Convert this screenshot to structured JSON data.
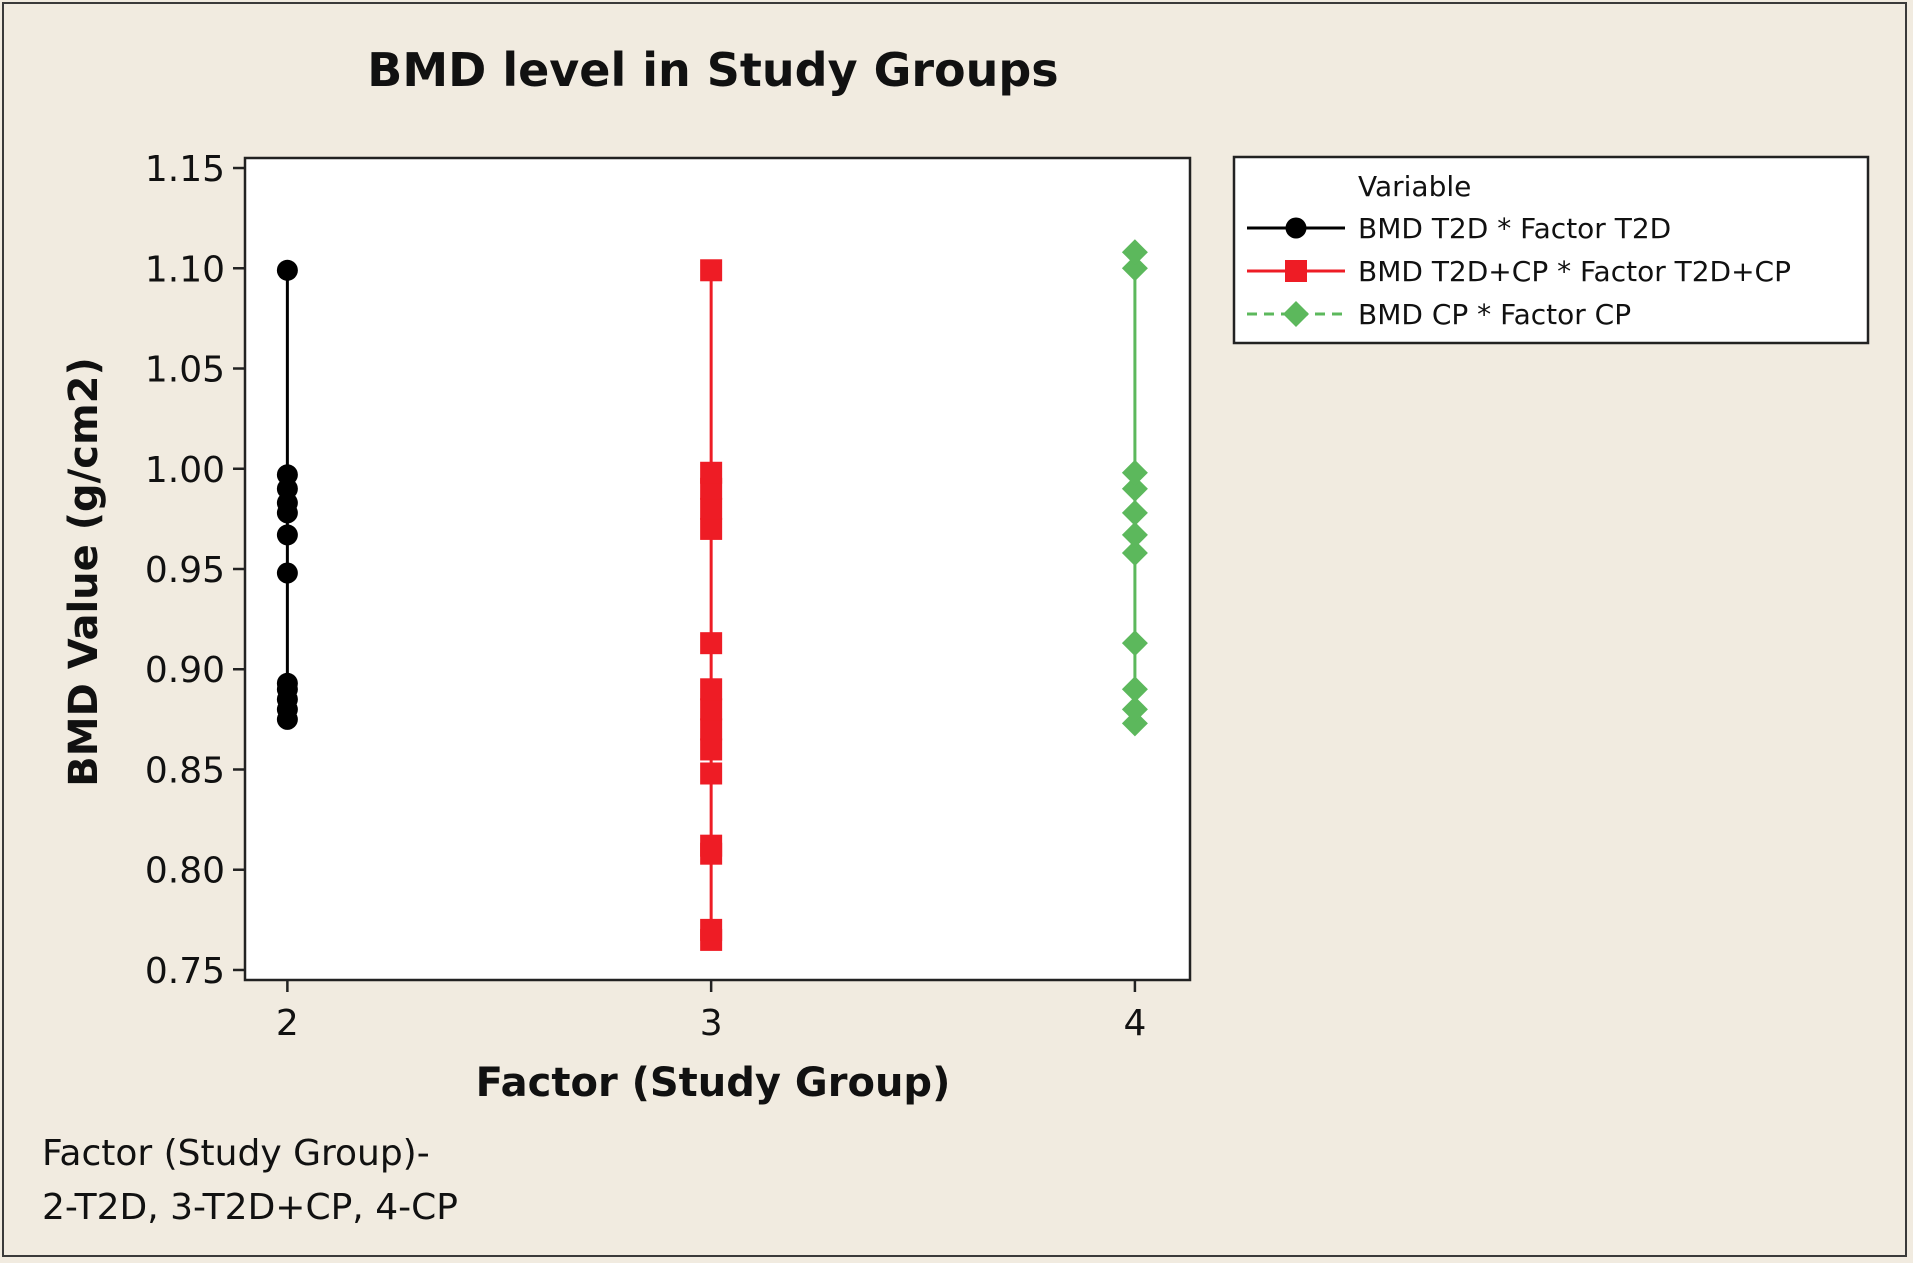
{
  "chart_data": {
    "type": "scatter",
    "title": "BMD level in Study Groups",
    "xlabel": "Factor (Study Group)",
    "ylabel": "BMD Value (g/cm2)",
    "xlim": [
      1.9,
      4.13
    ],
    "ylim": [
      0.745,
      1.155
    ],
    "x_ticks": [
      "2",
      "3",
      "4"
    ],
    "y_ticks": [
      "0.75",
      "0.80",
      "0.85",
      "0.90",
      "0.95",
      "1.00",
      "1.05",
      "1.10",
      "1.15"
    ],
    "grid": false,
    "legend_position": "right",
    "legend_title": "Variable",
    "series": [
      {
        "name": "BMD T2D * Factor T2D",
        "x": 2,
        "marker": "circle",
        "line": "solid",
        "color": "#000000",
        "values": [
          0.875,
          0.88,
          0.885,
          0.89,
          0.893,
          0.948,
          0.967,
          0.978,
          0.983,
          0.99,
          0.997,
          1.099
        ]
      },
      {
        "name": "BMD T2D+CP * Factor T2D+CP",
        "x": 3,
        "marker": "square",
        "line": "solid",
        "color": "#ee1c25",
        "values": [
          0.765,
          0.77,
          0.808,
          0.812,
          0.848,
          0.86,
          0.87,
          0.88,
          0.89,
          0.913,
          0.97,
          0.98,
          0.99,
          0.998,
          1.099
        ]
      },
      {
        "name": "BMD CP * Factor CP",
        "x": 4,
        "marker": "diamond",
        "line": "dashed",
        "color": "#5cb85c",
        "values": [
          0.873,
          0.88,
          0.89,
          0.913,
          0.958,
          0.967,
          0.978,
          0.99,
          0.998,
          1.1,
          1.108
        ]
      }
    ]
  },
  "footnote": {
    "line1": "Factor (Study Group)-",
    "line2": "2-T2D, 3-T2D+CP, 4-CP"
  }
}
